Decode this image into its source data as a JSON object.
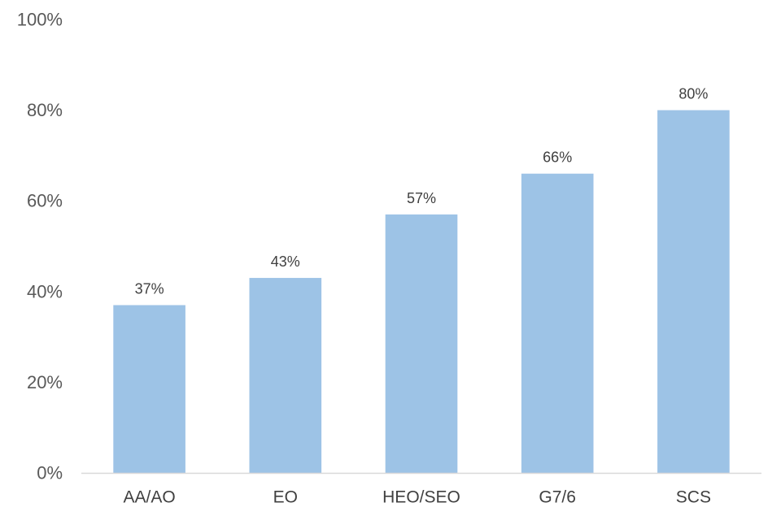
{
  "chart_data": {
    "type": "bar",
    "categories": [
      "AA/AO",
      "EO",
      "HEO/SEO",
      "G7/6",
      "SCS"
    ],
    "values": [
      37,
      43,
      57,
      66,
      80
    ],
    "data_labels": [
      "37%",
      "43%",
      "57%",
      "66%",
      "80%"
    ],
    "ylim": [
      0,
      100
    ],
    "yticks": [
      0,
      20,
      40,
      60,
      80,
      100
    ],
    "ytick_labels": [
      "0%",
      "20%",
      "40%",
      "60%",
      "80%",
      "100%"
    ],
    "grid": false,
    "legend": "none",
    "bar_color": "#9DC3E6",
    "axis_color": "#D9D9D9"
  }
}
